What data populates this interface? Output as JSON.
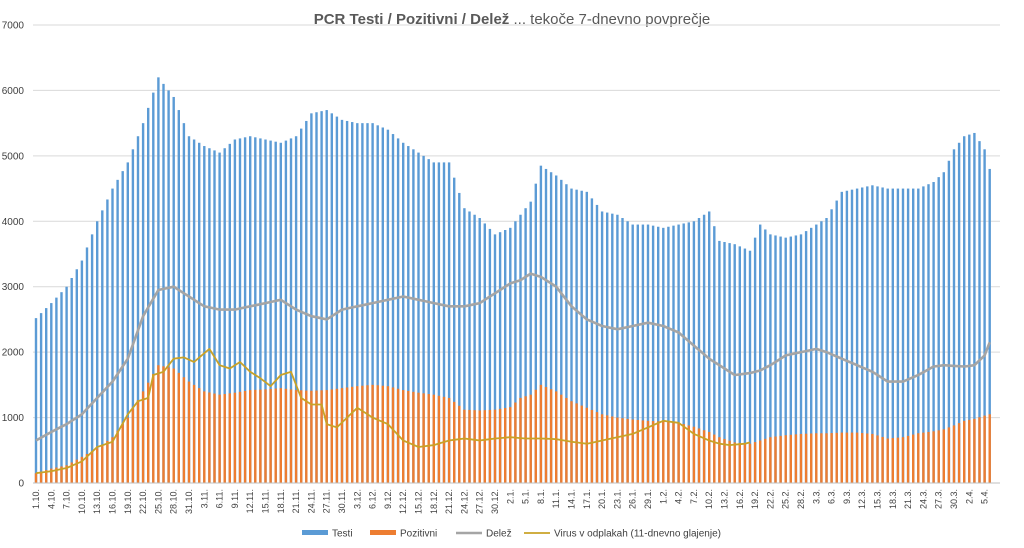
{
  "chart_data": {
    "type": "bar",
    "title": {
      "bold": "PCR Testi / Pozitivni / Delež",
      "rest": " ... tekoče 7-dnevno povprečje"
    },
    "xlabel": "",
    "ylabel": "",
    "ylim": [
      0,
      7000
    ],
    "yticks": [
      "0",
      "1000",
      "2000",
      "3000",
      "4000",
      "5000",
      "6000",
      "7000"
    ],
    "grid": true,
    "legend": "bottom",
    "x_tick_labels": [
      "1.10.",
      "4.10.",
      "7.10.",
      "10.10.",
      "13.10.",
      "16.10.",
      "19.10.",
      "22.10.",
      "25.10.",
      "28.10.",
      "31.10.",
      "3.11.",
      "6.11.",
      "9.11.",
      "12.11.",
      "15.11.",
      "18.11.",
      "21.11.",
      "24.11.",
      "27.11.",
      "30.11.",
      "3.12.",
      "6.12.",
      "9.12.",
      "12.12.",
      "15.12.",
      "18.12.",
      "21.12.",
      "24.12.",
      "27.12.",
      "30.12.",
      "2.1.",
      "5.1.",
      "8.1.",
      "11.1.",
      "14.1.",
      "17.1.",
      "20.1.",
      "23.1.",
      "26.1.",
      "29.1.",
      "1.2.",
      "4.2.",
      "7.2.",
      "10.2.",
      "13.2.",
      "16.2.",
      "19.2.",
      "22.2.",
      "25.2.",
      "28.2.",
      "3.3.",
      "6.3.",
      "9.3.",
      "12.3.",
      "15.3.",
      "18.3.",
      "21.3.",
      "24.3.",
      "27.3.",
      "30.3.",
      "2.4.",
      "5.4."
    ],
    "x_total_days": 187,
    "series": [
      {
        "name": "Testi",
        "kind": "bar",
        "color": "#5B9BD5",
        "anchors": [
          [
            0,
            2520
          ],
          [
            3,
            2750
          ],
          [
            6,
            3000
          ],
          [
            9,
            3400
          ],
          [
            12,
            4000
          ],
          [
            15,
            4500
          ],
          [
            18,
            4900
          ],
          [
            21,
            5500
          ],
          [
            24,
            6200
          ],
          [
            27,
            5900
          ],
          [
            30,
            5300
          ],
          [
            33,
            5150
          ],
          [
            36,
            5050
          ],
          [
            39,
            5250
          ],
          [
            42,
            5300
          ],
          [
            45,
            5250
          ],
          [
            48,
            5200
          ],
          [
            51,
            5300
          ],
          [
            54,
            5650
          ],
          [
            57,
            5700
          ],
          [
            60,
            5550
          ],
          [
            63,
            5500
          ],
          [
            66,
            5500
          ],
          [
            69,
            5400
          ],
          [
            72,
            5200
          ],
          [
            75,
            5050
          ],
          [
            78,
            4900
          ],
          [
            81,
            4900
          ],
          [
            84,
            4200
          ],
          [
            87,
            4050
          ],
          [
            90,
            3800
          ],
          [
            93,
            3900
          ],
          [
            95,
            4100
          ],
          [
            97,
            4300
          ],
          [
            99,
            4850
          ],
          [
            102,
            4700
          ],
          [
            105,
            4500
          ],
          [
            108,
            4450
          ],
          [
            111,
            4150
          ],
          [
            114,
            4100
          ],
          [
            117,
            3950
          ],
          [
            120,
            3950
          ],
          [
            123,
            3900
          ],
          [
            126,
            3950
          ],
          [
            129,
            4000
          ],
          [
            132,
            4150
          ],
          [
            134,
            3700
          ],
          [
            137,
            3650
          ],
          [
            140,
            3550
          ],
          [
            142,
            3950
          ],
          [
            144,
            3800
          ],
          [
            147,
            3750
          ],
          [
            150,
            3800
          ],
          [
            153,
            3950
          ],
          [
            155,
            4050
          ],
          [
            158,
            4450
          ],
          [
            161,
            4500
          ],
          [
            164,
            4550
          ],
          [
            167,
            4500
          ],
          [
            170,
            4500
          ],
          [
            173,
            4500
          ],
          [
            176,
            4600
          ],
          [
            178,
            4750
          ],
          [
            180,
            5100
          ],
          [
            182,
            5300
          ],
          [
            184,
            5350
          ],
          [
            186,
            5100
          ],
          [
            187,
            4800
          ]
        ]
      },
      {
        "name": "Pozitivni",
        "kind": "bar",
        "color": "#ED7D31",
        "anchors": [
          [
            0,
            150
          ],
          [
            3,
            220
          ],
          [
            6,
            270
          ],
          [
            9,
            400
          ],
          [
            12,
            530
          ],
          [
            15,
            700
          ],
          [
            18,
            1000
          ],
          [
            21,
            1400
          ],
          [
            24,
            1800
          ],
          [
            27,
            1750
          ],
          [
            30,
            1550
          ],
          [
            33,
            1400
          ],
          [
            36,
            1350
          ],
          [
            39,
            1380
          ],
          [
            42,
            1420
          ],
          [
            45,
            1430
          ],
          [
            48,
            1450
          ],
          [
            51,
            1420
          ],
          [
            54,
            1410
          ],
          [
            57,
            1420
          ],
          [
            60,
            1450
          ],
          [
            63,
            1480
          ],
          [
            66,
            1500
          ],
          [
            69,
            1480
          ],
          [
            72,
            1420
          ],
          [
            75,
            1380
          ],
          [
            78,
            1350
          ],
          [
            81,
            1300
          ],
          [
            84,
            1120
          ],
          [
            87,
            1110
          ],
          [
            90,
            1120
          ],
          [
            93,
            1160
          ],
          [
            95,
            1300
          ],
          [
            97,
            1350
          ],
          [
            99,
            1500
          ],
          [
            102,
            1400
          ],
          [
            105,
            1250
          ],
          [
            108,
            1150
          ],
          [
            111,
            1050
          ],
          [
            114,
            1000
          ],
          [
            117,
            970
          ],
          [
            120,
            950
          ],
          [
            123,
            940
          ],
          [
            126,
            920
          ],
          [
            129,
            860
          ],
          [
            132,
            780
          ],
          [
            134,
            700
          ],
          [
            137,
            620
          ],
          [
            140,
            600
          ],
          [
            142,
            650
          ],
          [
            144,
            700
          ],
          [
            147,
            730
          ],
          [
            150,
            750
          ],
          [
            153,
            760
          ],
          [
            155,
            760
          ],
          [
            158,
            770
          ],
          [
            161,
            770
          ],
          [
            164,
            750
          ],
          [
            167,
            680
          ],
          [
            170,
            700
          ],
          [
            173,
            760
          ],
          [
            176,
            790
          ],
          [
            178,
            820
          ],
          [
            180,
            880
          ],
          [
            182,
            950
          ],
          [
            184,
            980
          ],
          [
            186,
            1030
          ],
          [
            187,
            1050
          ]
        ]
      },
      {
        "name": "Delež",
        "kind": "line",
        "color": "#A5A5A5",
        "anchors": [
          [
            0,
            650
          ],
          [
            3,
            780
          ],
          [
            6,
            900
          ],
          [
            9,
            1050
          ],
          [
            12,
            1300
          ],
          [
            15,
            1550
          ],
          [
            18,
            1900
          ],
          [
            21,
            2550
          ],
          [
            24,
            2950
          ],
          [
            27,
            3000
          ],
          [
            30,
            2850
          ],
          [
            33,
            2700
          ],
          [
            36,
            2650
          ],
          [
            39,
            2650
          ],
          [
            42,
            2700
          ],
          [
            45,
            2750
          ],
          [
            48,
            2800
          ],
          [
            51,
            2650
          ],
          [
            54,
            2550
          ],
          [
            57,
            2500
          ],
          [
            60,
            2650
          ],
          [
            63,
            2700
          ],
          [
            66,
            2750
          ],
          [
            69,
            2800
          ],
          [
            72,
            2850
          ],
          [
            75,
            2800
          ],
          [
            78,
            2750
          ],
          [
            81,
            2700
          ],
          [
            84,
            2700
          ],
          [
            87,
            2750
          ],
          [
            90,
            2900
          ],
          [
            93,
            3050
          ],
          [
            95,
            3100
          ],
          [
            97,
            3200
          ],
          [
            99,
            3150
          ],
          [
            102,
            3000
          ],
          [
            105,
            2700
          ],
          [
            108,
            2500
          ],
          [
            111,
            2400
          ],
          [
            114,
            2350
          ],
          [
            117,
            2400
          ],
          [
            120,
            2450
          ],
          [
            123,
            2400
          ],
          [
            126,
            2300
          ],
          [
            129,
            2100
          ],
          [
            132,
            1900
          ],
          [
            134,
            1800
          ],
          [
            137,
            1650
          ],
          [
            140,
            1680
          ],
          [
            142,
            1720
          ],
          [
            144,
            1800
          ],
          [
            147,
            1950
          ],
          [
            150,
            2000
          ],
          [
            153,
            2050
          ],
          [
            155,
            2000
          ],
          [
            158,
            1900
          ],
          [
            161,
            1800
          ],
          [
            164,
            1700
          ],
          [
            167,
            1550
          ],
          [
            170,
            1550
          ],
          [
            173,
            1650
          ],
          [
            176,
            1780
          ],
          [
            178,
            1800
          ],
          [
            180,
            1790
          ],
          [
            182,
            1780
          ],
          [
            184,
            1800
          ],
          [
            186,
            1950
          ],
          [
            187,
            2150
          ]
        ]
      },
      {
        "name": "Virus v odplakah (11-dnevno glajenje)",
        "kind": "line",
        "color": "#C9A227",
        "anchors": [
          [
            0,
            150
          ],
          [
            3,
            180
          ],
          [
            6,
            230
          ],
          [
            9,
            330
          ],
          [
            12,
            550
          ],
          [
            15,
            630
          ],
          [
            18,
            1050
          ],
          [
            20,
            1250
          ],
          [
            22,
            1300
          ],
          [
            23,
            1650
          ],
          [
            25,
            1700
          ],
          [
            27,
            1900
          ],
          [
            29,
            1920
          ],
          [
            31,
            1850
          ],
          [
            34,
            2050
          ],
          [
            36,
            1800
          ],
          [
            38,
            1750
          ],
          [
            40,
            1850
          ],
          [
            42,
            1700
          ],
          [
            44,
            1600
          ],
          [
            46,
            1480
          ],
          [
            48,
            1650
          ],
          [
            50,
            1700
          ],
          [
            52,
            1300
          ],
          [
            54,
            1200
          ],
          [
            56,
            1200
          ],
          [
            57,
            900
          ],
          [
            59,
            850
          ],
          [
            61,
            1000
          ],
          [
            63,
            1150
          ],
          [
            66,
            1000
          ],
          [
            69,
            900
          ],
          [
            72,
            650
          ],
          [
            75,
            550
          ],
          [
            78,
            580
          ],
          [
            81,
            650
          ],
          [
            84,
            680
          ],
          [
            87,
            650
          ],
          [
            90,
            680
          ],
          [
            93,
            700
          ],
          [
            96,
            680
          ],
          [
            99,
            680
          ],
          [
            102,
            670
          ],
          [
            105,
            630
          ],
          [
            108,
            600
          ],
          [
            111,
            650
          ],
          [
            114,
            700
          ],
          [
            117,
            750
          ],
          [
            120,
            850
          ],
          [
            123,
            950
          ],
          [
            126,
            920
          ],
          [
            129,
            750
          ],
          [
            132,
            650
          ],
          [
            134,
            600
          ],
          [
            136,
            580
          ],
          [
            139,
            600
          ],
          [
            140,
            620
          ]
        ]
      }
    ]
  }
}
